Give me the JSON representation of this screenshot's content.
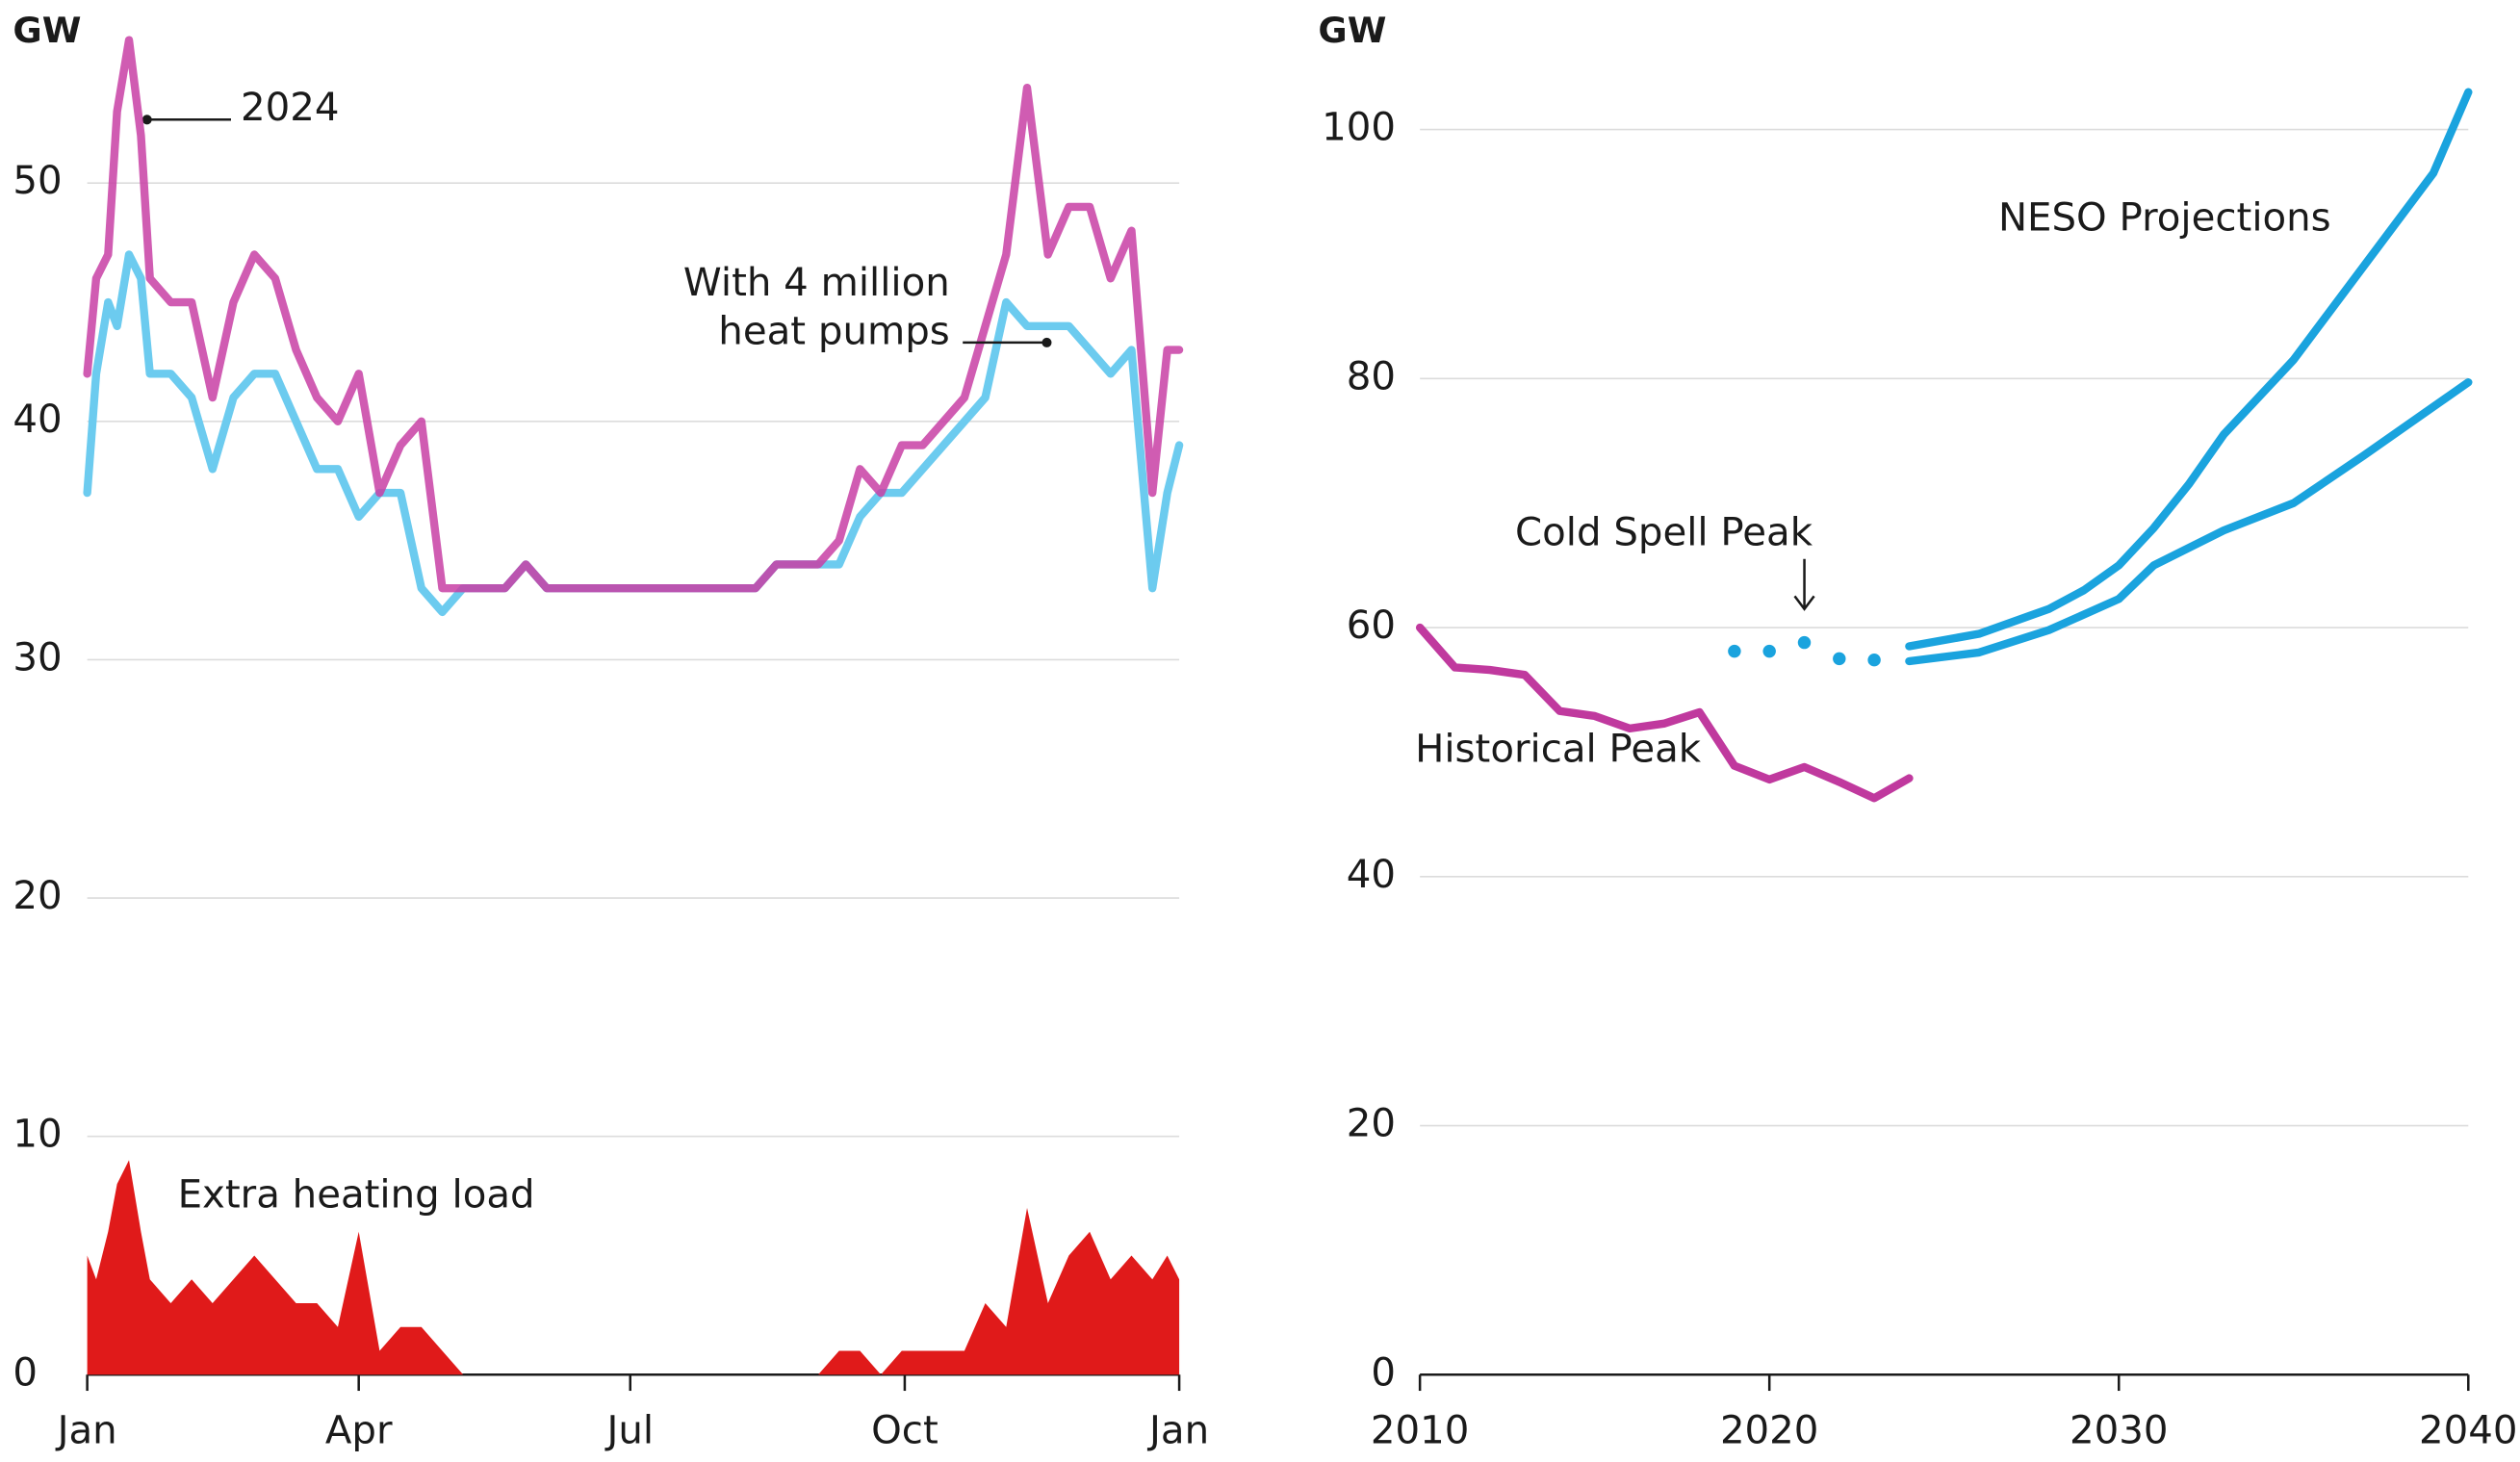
{
  "chart_data": [
    {
      "type": "line",
      "ylabel": "GW",
      "x": [
        0,
        3,
        7,
        10,
        14,
        18,
        21,
        28,
        35,
        42,
        49,
        56,
        63,
        70,
        77,
        84,
        91,
        98,
        105,
        112,
        119,
        126,
        133,
        140,
        147,
        154,
        161,
        168,
        175,
        182,
        189,
        196,
        203,
        210,
        217,
        224,
        231,
        238,
        245,
        252,
        259,
        266,
        273,
        280,
        287,
        294,
        301,
        308,
        315,
        322,
        329,
        336,
        343,
        350,
        357,
        362,
        366
      ],
      "xlim": [
        0,
        366
      ],
      "xticks": [
        {
          "value": 0,
          "label": "Jan"
        },
        {
          "value": 91,
          "label": "Apr"
        },
        {
          "value": 182,
          "label": "Jul"
        },
        {
          "value": 274,
          "label": "Oct"
        },
        {
          "value": 366,
          "label": "Jan"
        }
      ],
      "ylim": [
        0,
        57
      ],
      "yticks": [
        0,
        10,
        20,
        30,
        40,
        50
      ],
      "grid": true,
      "series": [
        {
          "name": "2024",
          "color": "#6ccbef",
          "values": [
            37,
            42,
            45,
            44,
            47,
            46,
            42,
            42,
            41,
            38,
            41,
            42,
            42,
            40,
            38,
            38,
            36,
            37,
            37,
            33,
            32,
            33,
            33,
            33,
            34,
            33,
            33,
            33,
            33,
            33,
            33,
            33,
            33,
            33,
            33,
            33,
            34,
            34,
            34,
            34,
            36,
            37,
            37,
            38,
            39,
            40,
            41,
            45,
            44,
            44,
            44,
            43,
            42,
            43,
            33,
            37,
            39
          ]
        },
        {
          "name": "With 4 million heat pumps",
          "color": "#c83fa5",
          "values": [
            42,
            46,
            47,
            53,
            56,
            52,
            46,
            45,
            45,
            41,
            45,
            47,
            46,
            43,
            41,
            40,
            42,
            37,
            39,
            40,
            33,
            33,
            33,
            33,
            34,
            33,
            33,
            33,
            33,
            33,
            33,
            33,
            33,
            33,
            33,
            33,
            34,
            34,
            34,
            35,
            38,
            37,
            39,
            39,
            40,
            41,
            44,
            47,
            54,
            47,
            49,
            49,
            46,
            48,
            37,
            43,
            43
          ]
        },
        {
          "name": "Extra heating load",
          "color": "#e01a1a",
          "area": true,
          "values": [
            5,
            4,
            6,
            8,
            9,
            6,
            4,
            3,
            4,
            3,
            4,
            5,
            4,
            3,
            3,
            2,
            6,
            1,
            2,
            2,
            1,
            0,
            0,
            0,
            0,
            0,
            0,
            0,
            0,
            0,
            0,
            0,
            0,
            0,
            0,
            0,
            0,
            0,
            0,
            1,
            1,
            0,
            1,
            1,
            1,
            1,
            3,
            2,
            7,
            3,
            5,
            6,
            4,
            5,
            4,
            5,
            4
          ]
        }
      ]
    },
    {
      "type": "line",
      "ylabel": "GW",
      "xlim": [
        2010,
        2040
      ],
      "xticks": [
        2010,
        2020,
        2030,
        2040
      ],
      "ylim": [
        0,
        103
      ],
      "yticks": [
        0,
        20,
        40,
        60,
        80,
        100
      ],
      "grid": true,
      "series": [
        {
          "name": "Historical Peak",
          "color": "#c0399e",
          "x": [
            2010,
            2011,
            2012,
            2013,
            2014,
            2015,
            2016,
            2017,
            2018,
            2019,
            2020,
            2021,
            2022,
            2023,
            2024
          ],
          "values": [
            60,
            56.8,
            56.6,
            56.2,
            53.3,
            52.9,
            51.9,
            52.3,
            53.2,
            48.9,
            47.8,
            48.8,
            47.6,
            46.3,
            47.9
          ]
        },
        {
          "name": "Cold Spell Peak",
          "color": "#1aa3de",
          "dots": true,
          "x": [
            2019,
            2020,
            2021,
            2022,
            2023
          ],
          "values": [
            58.1,
            58.1,
            58.8,
            57.5,
            57.4
          ]
        },
        {
          "name": "NESO Projections",
          "color": "#1aa3de",
          "x": [
            2024,
            2026,
            2028,
            2029,
            2030,
            2031,
            2032,
            2033,
            2035,
            2037,
            2039,
            2040
          ],
          "values": [
            58.5,
            59.5,
            61.5,
            63,
            65,
            68,
            71.5,
            75.5,
            81.5,
            89,
            96.5,
            103
          ]
        },
        {
          "color": "#1aa3de",
          "x": [
            2024,
            2026,
            2028,
            2030,
            2031,
            2033,
            2035,
            2037,
            2040
          ],
          "values": [
            57.3,
            58,
            59.8,
            62.3,
            65,
            67.8,
            70,
            73.8,
            79.7
          ]
        }
      ]
    }
  ]
}
